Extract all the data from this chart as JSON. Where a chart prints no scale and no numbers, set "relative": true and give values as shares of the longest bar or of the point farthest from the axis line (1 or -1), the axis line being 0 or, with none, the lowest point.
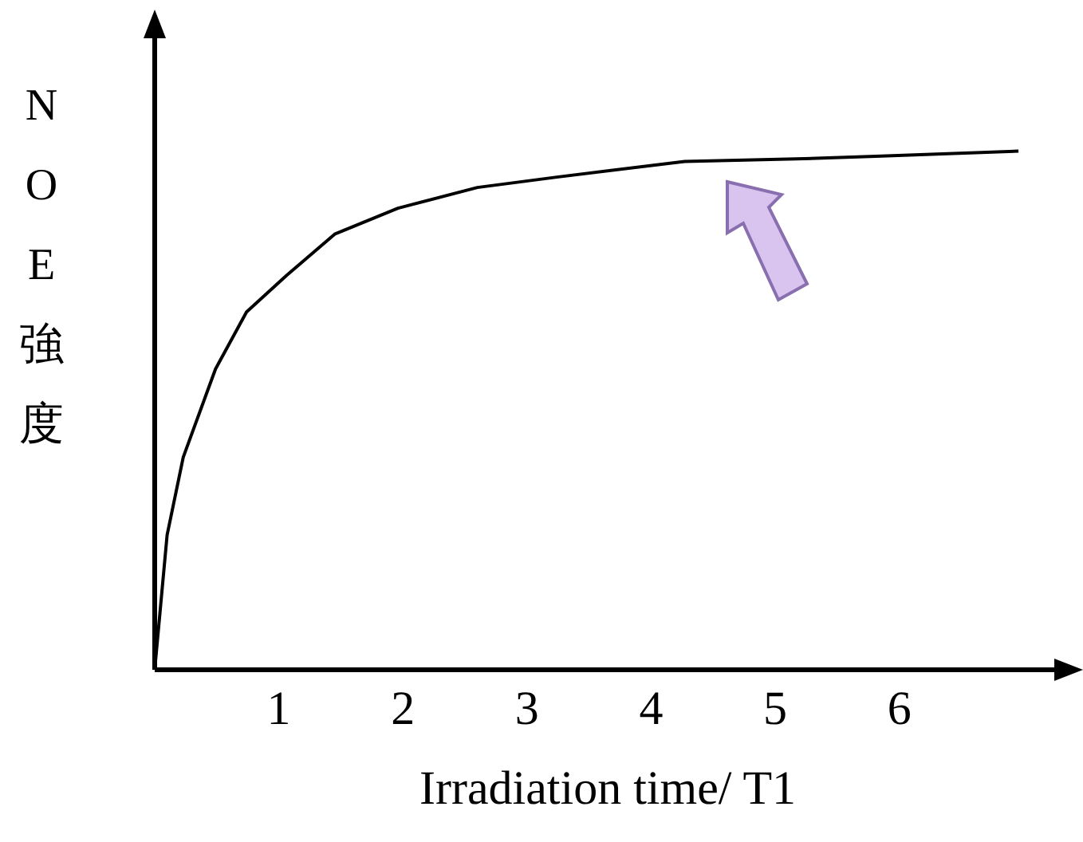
{
  "chart_data": {
    "type": "line",
    "xlabel": "Irradiation time/ T1",
    "ylabel": "NOE強度",
    "relative": true,
    "color": "#000000",
    "x": [
      0,
      0.1,
      0.23,
      0.49,
      0.74,
      1.06,
      1.45,
      1.96,
      2.6,
      3.24,
      4.27,
      5.17,
      5.81,
      6.96
    ],
    "values": [
      0,
      0.26,
      0.41,
      0.58,
      0.69,
      0.76,
      0.84,
      0.89,
      0.93,
      0.95,
      0.98,
      0.985,
      0.99,
      1
    ],
    "xlim": [
      0,
      7.3
    ],
    "xticks": [
      1,
      2,
      3,
      4,
      5,
      6
    ]
  }
}
